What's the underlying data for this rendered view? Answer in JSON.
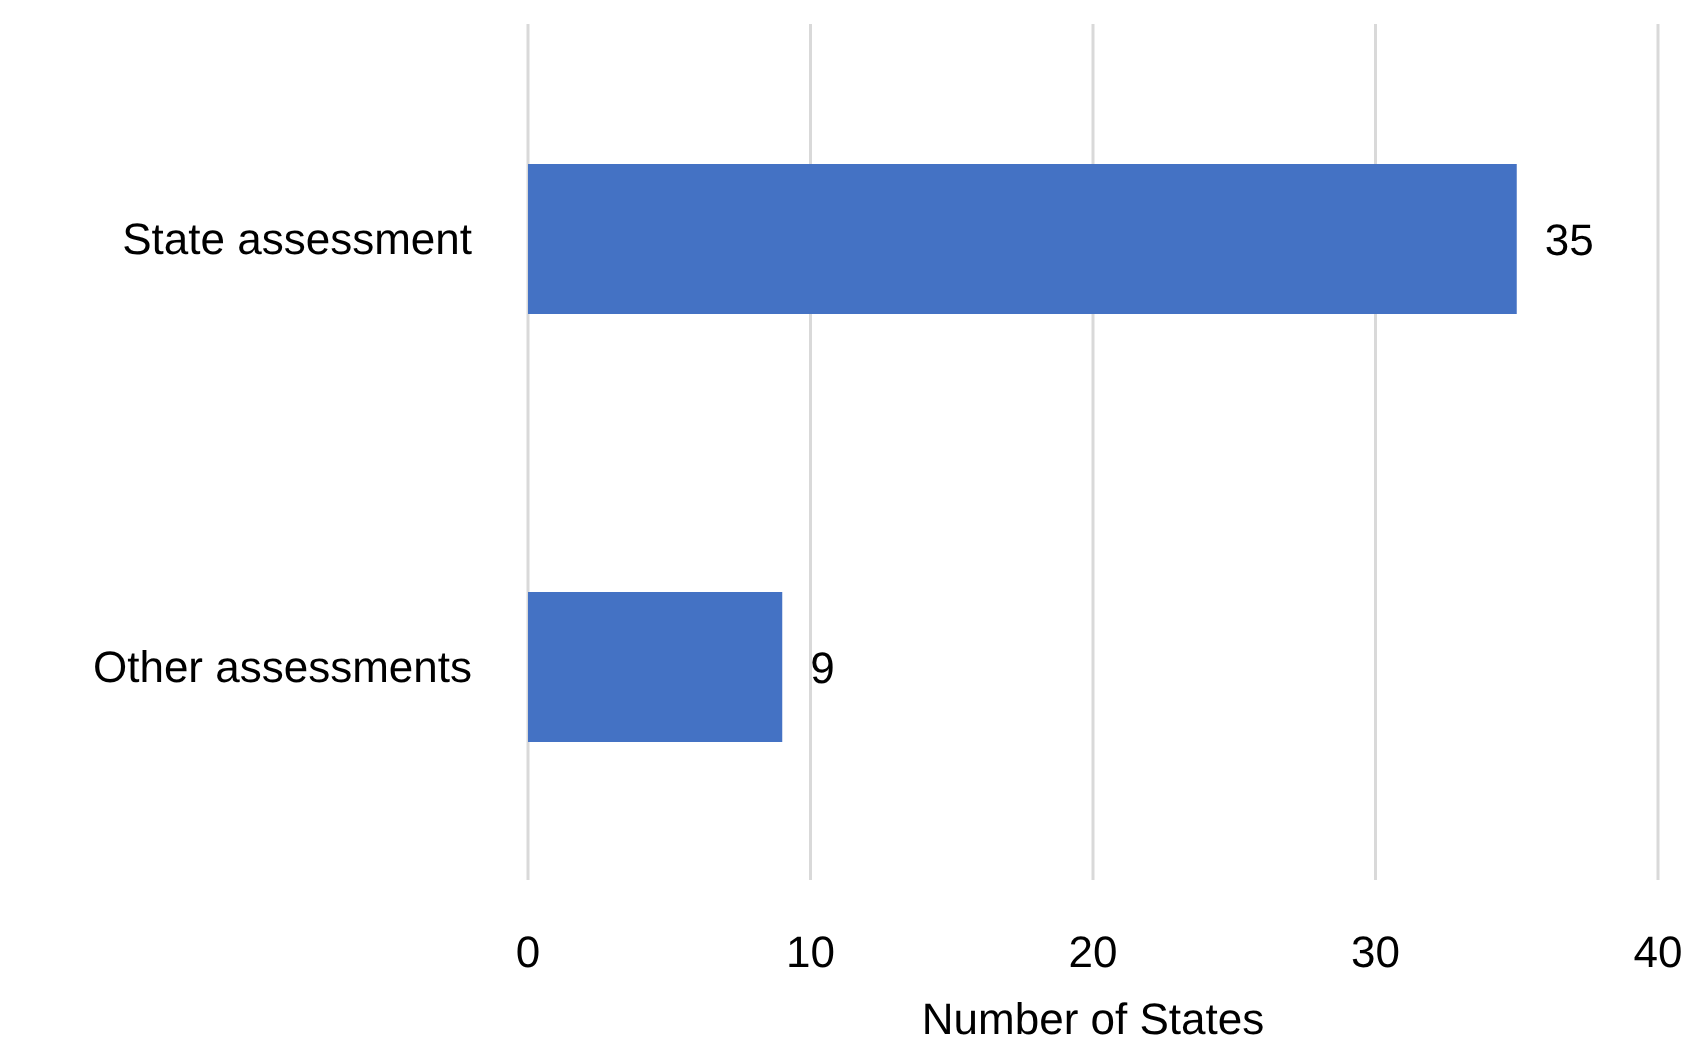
{
  "chart_data": {
    "type": "bar",
    "orientation": "horizontal",
    "xlabel": "Number of States",
    "categories": [
      "State assessment",
      "Other assessments"
    ],
    "values": [
      35,
      9
    ],
    "color": "#4472c4",
    "xlim": [
      0,
      40
    ],
    "xticks": [
      0,
      10,
      20,
      30,
      40
    ],
    "grid": "x",
    "data_labels": true
  }
}
